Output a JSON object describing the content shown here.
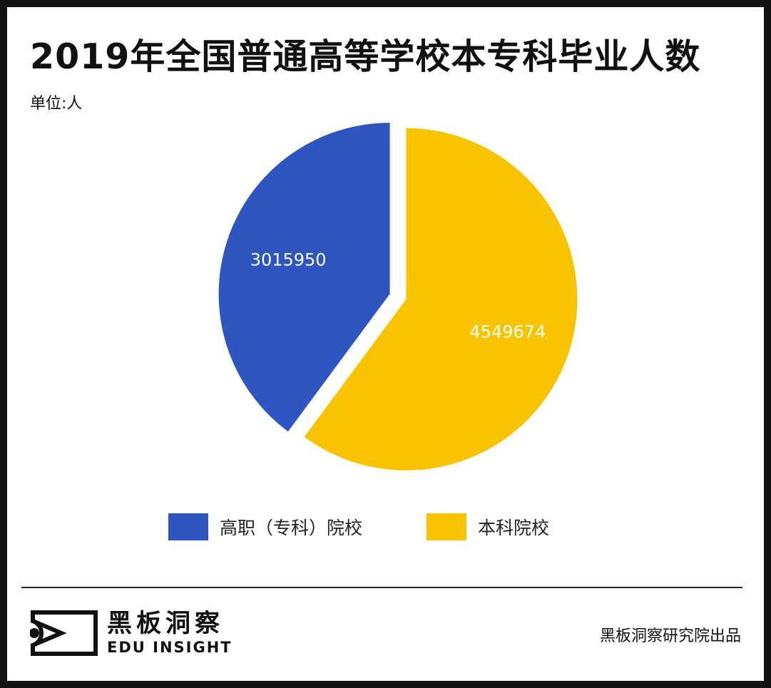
{
  "header": {
    "title": "2019年全国普通高等学校本专科毕业人数",
    "unit": "单位:人"
  },
  "chart_data": {
    "type": "pie",
    "title": "2019年全国普通高等学校本专科毕业人数",
    "unit": "单位:人",
    "labels": [
      "高职（专科）院校",
      "本科院校"
    ],
    "values": [
      3015950,
      4549674
    ],
    "value_labels": [
      "3015950",
      "4549674"
    ],
    "colors": [
      "#2e55c0",
      "#f8c300"
    ],
    "exploded": true,
    "legend_position": "bottom"
  },
  "legend": {
    "items": [
      {
        "label": "高职（专科）院校",
        "color": "#2e55c0"
      },
      {
        "label": "本科院校",
        "color": "#f8c300"
      }
    ]
  },
  "footer": {
    "logo_cn": "黑板洞察",
    "logo_en": "EDU INSIGHT",
    "credit": "黑板洞察研究院出品"
  }
}
